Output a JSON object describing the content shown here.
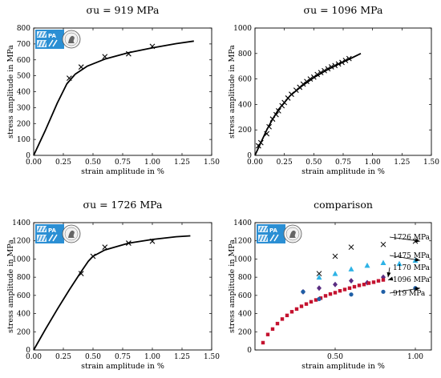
{
  "chart_data": [
    {
      "type": "line",
      "title": "σu = 919 MPa",
      "xlabel": "strain amplitude in %",
      "ylabel": "stress amplitude in MPa",
      "xlim": [
        0,
        1.5
      ],
      "ylim": [
        0,
        800
      ],
      "xticks": [
        "0.00",
        "0.25",
        "0.50",
        "0.75",
        "1.00",
        "1.25",
        "1.50"
      ],
      "yticks": [
        "0",
        "100",
        "200",
        "300",
        "400",
        "500",
        "600",
        "700",
        "800"
      ],
      "grid": false,
      "logo": true,
      "curve": [
        [
          0,
          0
        ],
        [
          0.1,
          160
        ],
        [
          0.2,
          330
        ],
        [
          0.28,
          450
        ],
        [
          0.35,
          510
        ],
        [
          0.45,
          560
        ],
        [
          0.6,
          605
        ],
        [
          0.8,
          645
        ],
        [
          1.0,
          675
        ],
        [
          1.2,
          702
        ],
        [
          1.35,
          718
        ]
      ],
      "markers": [
        [
          0.3,
          485
        ],
        [
          0.4,
          555
        ],
        [
          0.6,
          620
        ],
        [
          0.8,
          638
        ],
        [
          1.0,
          685
        ]
      ]
    },
    {
      "type": "line",
      "title": "σu = 1096 MPa",
      "xlabel": "strain amplitude in %",
      "ylabel": "stress amplitude in MPa",
      "xlim": [
        0,
        1.5
      ],
      "ylim": [
        0,
        1000
      ],
      "xticks": [
        "0.00",
        "0.25",
        "0.50",
        "0.75",
        "1.00",
        "1.25",
        "1.50"
      ],
      "yticks": [
        "0",
        "200",
        "400",
        "600",
        "800",
        "1000"
      ],
      "grid": false,
      "logo": false,
      "curve": [
        [
          0,
          0
        ],
        [
          0.05,
          100
        ],
        [
          0.1,
          200
        ],
        [
          0.15,
          285
        ],
        [
          0.2,
          360
        ],
        [
          0.3,
          470
        ],
        [
          0.4,
          545
        ],
        [
          0.5,
          610
        ],
        [
          0.6,
          665
        ],
        [
          0.7,
          712
        ],
        [
          0.8,
          755
        ],
        [
          0.9,
          800
        ]
      ],
      "markers": [
        [
          0.03,
          75
        ],
        [
          0.05,
          100
        ],
        [
          0.1,
          170
        ],
        [
          0.12,
          225
        ],
        [
          0.15,
          285
        ],
        [
          0.18,
          320
        ],
        [
          0.2,
          350
        ],
        [
          0.23,
          390
        ],
        [
          0.25,
          415
        ],
        [
          0.28,
          450
        ],
        [
          0.31,
          480
        ],
        [
          0.35,
          512
        ],
        [
          0.38,
          535
        ],
        [
          0.41,
          560
        ],
        [
          0.44,
          580
        ],
        [
          0.47,
          600
        ],
        [
          0.5,
          615
        ],
        [
          0.53,
          635
        ],
        [
          0.56,
          650
        ],
        [
          0.59,
          665
        ],
        [
          0.62,
          680
        ],
        [
          0.65,
          695
        ],
        [
          0.68,
          705
        ],
        [
          0.71,
          718
        ],
        [
          0.74,
          730
        ],
        [
          0.77,
          745
        ],
        [
          0.8,
          760
        ]
      ]
    },
    {
      "type": "line",
      "title": "σu = 1726 MPa",
      "xlabel": "strain amplitude in %",
      "ylabel": "stress amplitude in MPa",
      "xlim": [
        0,
        1.5
      ],
      "ylim": [
        0,
        1400
      ],
      "xticks": [
        "0.00",
        "0.25",
        "0.50",
        "0.75",
        "1.00",
        "1.25",
        "1.50"
      ],
      "yticks": [
        "0",
        "200",
        "400",
        "600",
        "800",
        "1000",
        "1200",
        "1400"
      ],
      "grid": false,
      "logo": true,
      "curve": [
        [
          0,
          0
        ],
        [
          0.1,
          230
        ],
        [
          0.2,
          450
        ],
        [
          0.3,
          660
        ],
        [
          0.4,
          860
        ],
        [
          0.46,
          975
        ],
        [
          0.5,
          1030
        ],
        [
          0.6,
          1100
        ],
        [
          0.8,
          1175
        ],
        [
          1.0,
          1215
        ],
        [
          1.2,
          1245
        ],
        [
          1.32,
          1255
        ]
      ],
      "markers": [
        [
          0.4,
          840
        ],
        [
          0.5,
          1030
        ],
        [
          0.6,
          1130
        ],
        [
          0.8,
          1175
        ],
        [
          1.0,
          1195
        ]
      ]
    },
    {
      "type": "scatter",
      "title": "comparison",
      "xlabel": "strain amplitude in %",
      "ylabel": "stress amplitude in MPa",
      "xlim": [
        0,
        1.1
      ],
      "ylim": [
        0,
        1400
      ],
      "xticks": [
        "0.50",
        "1.00"
      ],
      "yticks": [
        "0",
        "200",
        "400",
        "600",
        "800",
        "1000",
        "1200",
        "1400"
      ],
      "grid": false,
      "logo": true,
      "series": [
        {
          "name": "1726 MPa",
          "marker": "x",
          "color": "#111111",
          "points": [
            [
              0.4,
              840
            ],
            [
              0.5,
              1030
            ],
            [
              0.6,
              1130
            ],
            [
              0.8,
              1160
            ],
            [
              1.0,
              1195
            ]
          ]
        },
        {
          "name": "1475 MPa",
          "marker": "triangle",
          "color": "#2eb3e6",
          "points": [
            [
              0.4,
              800
            ],
            [
              0.5,
              840
            ],
            [
              0.6,
              890
            ],
            [
              0.7,
              930
            ],
            [
              0.8,
              960
            ],
            [
              0.9,
              950
            ],
            [
              1.0,
              985
            ]
          ]
        },
        {
          "name": "1170 MPa",
          "marker": "diamond",
          "color": "#5a2d82",
          "points": [
            [
              0.3,
              640
            ],
            [
              0.4,
              680
            ],
            [
              0.5,
              720
            ],
            [
              0.6,
              760
            ],
            [
              0.7,
              740
            ],
            [
              0.8,
              800
            ]
          ]
        },
        {
          "name": "1096 MPa",
          "marker": "square",
          "color": "#c4122f",
          "points": [
            [
              0.05,
              80
            ],
            [
              0.08,
              170
            ],
            [
              0.11,
              230
            ],
            [
              0.14,
              290
            ],
            [
              0.17,
              340
            ],
            [
              0.2,
              380
            ],
            [
              0.23,
              420
            ],
            [
              0.26,
              450
            ],
            [
              0.29,
              480
            ],
            [
              0.32,
              505
            ],
            [
              0.35,
              530
            ],
            [
              0.38,
              550
            ],
            [
              0.41,
              570
            ],
            [
              0.44,
              595
            ],
            [
              0.47,
              615
            ],
            [
              0.5,
              630
            ],
            [
              0.53,
              650
            ],
            [
              0.56,
              665
            ],
            [
              0.59,
              680
            ],
            [
              0.62,
              695
            ],
            [
              0.65,
              710
            ],
            [
              0.68,
              720
            ],
            [
              0.71,
              735
            ],
            [
              0.74,
              745
            ],
            [
              0.77,
              760
            ],
            [
              0.8,
              770
            ]
          ]
        },
        {
          "name": "919 MPa",
          "marker": "circle",
          "color": "#1f5fa6",
          "points": [
            [
              0.3,
              640
            ],
            [
              0.4,
              560
            ],
            [
              0.6,
              610
            ],
            [
              0.8,
              640
            ],
            [
              1.0,
              680
            ]
          ]
        }
      ]
    }
  ]
}
